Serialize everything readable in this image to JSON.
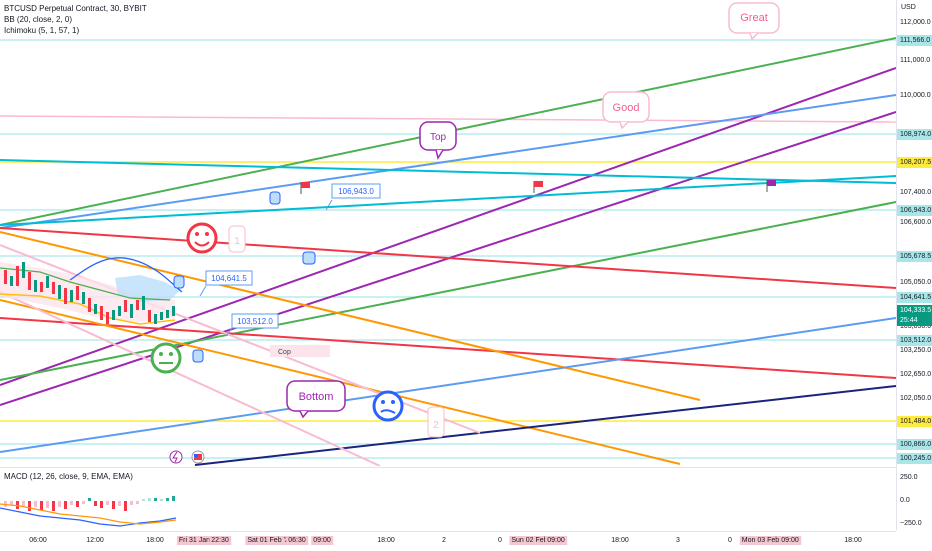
{
  "header": {
    "symbol_line": "BTCUSD Perpetual Contract, 30, BYBIT",
    "bb_line": "BB (20, close, 2, 0)",
    "ichimoku_line": "Ichimoku (5, 1, 57, 1)"
  },
  "macd": {
    "legend": "MACD (12, 26, close, 9, EMA, EMA)",
    "axis_labels": [
      "250.0",
      "0.0",
      "−250.0"
    ]
  },
  "price_axis": {
    "currency": "USD",
    "labels": [
      "112,000.0",
      "111,000.0",
      "110,000.0",
      "107,400.0",
      "106,600.0",
      "105,050.0",
      "103,850.0",
      "103,250.0",
      "102,650.0",
      "102,050.0"
    ],
    "tags": [
      {
        "text": "111,566.0",
        "color": "#a9e6ea"
      },
      {
        "text": "108,974.0",
        "color": "#a9e6ea"
      },
      {
        "text": "108,207.5",
        "color": "#ffeb3b"
      },
      {
        "text": "106,943.0",
        "color": "#a9e6ea"
      },
      {
        "text": "105,678.5",
        "color": "#a9e6ea"
      },
      {
        "text": "104,641.5",
        "color": "#a9e6ea"
      },
      {
        "text": "104,333.5",
        "color": "#089981"
      },
      {
        "text": "25:44",
        "color": "#089981"
      },
      {
        "text": "103,512.0",
        "color": "#a9e6ea"
      },
      {
        "text": "101,484.0",
        "color": "#ffeb3b"
      },
      {
        "text": "100,866.0",
        "color": "#a9e6ea"
      },
      {
        "text": "100,245.0",
        "color": "#a9e6ea"
      }
    ]
  },
  "time_axis": {
    "labels": [
      "06:00",
      "12:00",
      "18:00",
      "Fri 31 Jan '25",
      "22:30",
      "Sat 01 Feb '25",
      "06:30",
      "09:00",
      "18:00",
      "2",
      "0",
      "Sun 02 Feb '25",
      "09:00",
      "18:00",
      "3",
      "0",
      "Mon 03 Feb '25",
      "09:00",
      "18:00"
    ]
  },
  "annotations": {
    "great": "Great",
    "good": "Good",
    "top": "Top",
    "bottom": "Bottom",
    "cop": "Cop",
    "callout_1": "106,943.0",
    "callout_2": "104,641.5",
    "callout_3": "103,512.0",
    "num_1": "1",
    "num_2": "2"
  },
  "colors": {
    "green": "#4caf50",
    "purple": "#9c27b0",
    "blue": "#5b9cf2",
    "teal": "#00bcd4",
    "red": "#f23645",
    "orange": "#ff9800",
    "navy": "#1a237e",
    "pink": "#f8bbd0",
    "yellow": "#ffeb3b",
    "cyan_h": "#a9e6ea"
  }
}
